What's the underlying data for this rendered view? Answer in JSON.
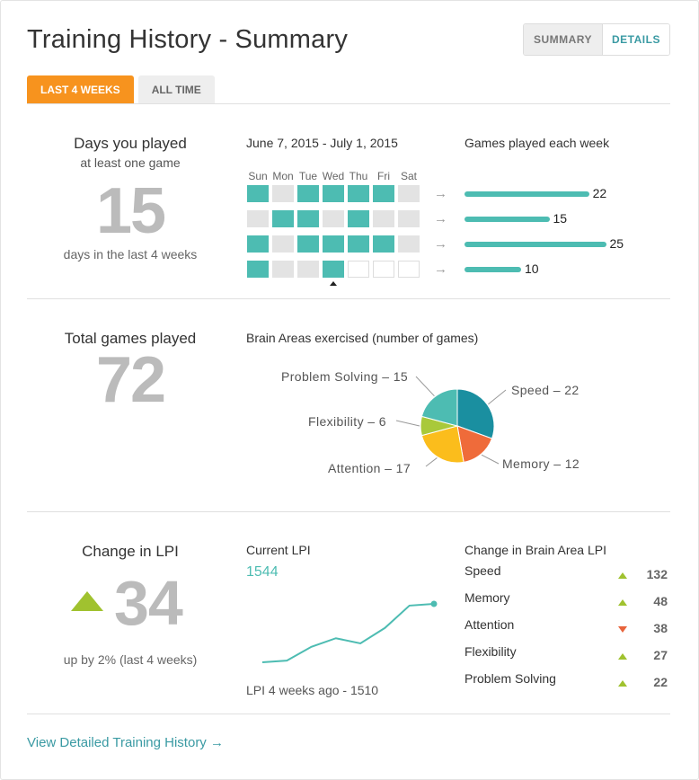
{
  "page": {
    "title": "Training History - Summary",
    "view_toggle": {
      "summary": "SUMMARY",
      "details": "DETAILS"
    },
    "tabs": [
      {
        "label": "LAST 4 WEEKS",
        "active": true
      },
      {
        "label": "ALL TIME",
        "active": false
      }
    ],
    "footer_link": "View Detailed Training History →"
  },
  "days_played": {
    "heading": "Days you played",
    "subheading": "at least one game",
    "value": "15",
    "caption": "days in the last 4 weeks"
  },
  "calendar": {
    "date_range": "June 7, 2015 - July 1, 2015",
    "day_headers": [
      "Sun",
      "Mon",
      "Tue",
      "Wed",
      "Thu",
      "Fri",
      "Sat"
    ],
    "weeks": [
      [
        1,
        0,
        1,
        1,
        1,
        1,
        0
      ],
      [
        0,
        1,
        1,
        0,
        1,
        0,
        0
      ],
      [
        1,
        0,
        1,
        1,
        1,
        1,
        0
      ],
      [
        1,
        0,
        0,
        1,
        -1,
        -1,
        -1
      ]
    ],
    "today_index": 3
  },
  "games_per_week": {
    "title": "Games played each week",
    "arrow": "→",
    "values": [
      "22",
      "15",
      "25",
      "10"
    ]
  },
  "total_games": {
    "heading": "Total games played",
    "value": "72"
  },
  "brain_areas": {
    "title": "Brain Areas exercised (number of games)",
    "labels": {
      "problem_solving": "Problem Solving – 15",
      "speed": "Speed – 22",
      "flexibility": "Flexibility – 6",
      "memory": "Memory – 12",
      "attention": "Attention – 17"
    }
  },
  "chart_data": [
    {
      "type": "pie",
      "title": "Brain Areas exercised (number of games)",
      "labels": [
        "Speed",
        "Memory",
        "Attention",
        "Flexibility",
        "Problem Solving"
      ],
      "values": [
        22,
        12,
        17,
        6,
        15
      ],
      "colors": [
        "#1a8fa0",
        "#ef6b3a",
        "#fbbd1c",
        "#a9c93a",
        "#4dbcb2"
      ]
    },
    {
      "type": "line",
      "title": "Current LPI",
      "x": [
        1,
        2,
        3,
        4,
        5,
        6,
        7,
        8
      ],
      "y": [
        1510,
        1511,
        1519,
        1524,
        1521,
        1530,
        1543,
        1544
      ],
      "color": "#4dbcb2"
    }
  ],
  "lpi": {
    "heading": "Change in LPI",
    "value": "34",
    "caption": "up by 2% (last 4 weeks)",
    "current_label": "Current LPI",
    "current_value": "1544",
    "start_caption": "LPI 4 weeks ago - 1510",
    "up_color": "#a0c22f",
    "down_color": "#e8643c"
  },
  "area_lpi": {
    "title": "Change in Brain Area LPI",
    "rows": [
      {
        "name": "Speed",
        "value": "132",
        "direction": "up"
      },
      {
        "name": "Memory",
        "value": "48",
        "direction": "up"
      },
      {
        "name": "Attention",
        "value": "38",
        "direction": "down"
      },
      {
        "name": "Flexibility",
        "value": "27",
        "direction": "up"
      },
      {
        "name": "Problem Solving",
        "value": "22",
        "direction": "up"
      }
    ]
  }
}
